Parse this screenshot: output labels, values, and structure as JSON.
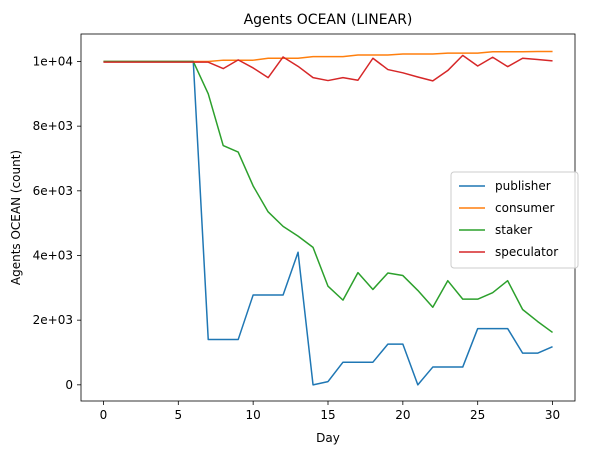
{
  "chart_data": {
    "type": "line",
    "title": "Agents OCEAN (LINEAR)",
    "xlabel": "Day",
    "ylabel": "Agents OCEAN (count)",
    "xlim": [
      -1.5,
      31.5
    ],
    "ylim": [
      -500,
      10850
    ],
    "x_ticks": [
      0,
      5,
      10,
      15,
      20,
      25,
      30
    ],
    "x_tick_labels": [
      "0",
      "5",
      "10",
      "15",
      "20",
      "25",
      "30"
    ],
    "y_ticks": [
      0,
      2000,
      4000,
      6000,
      8000,
      10000
    ],
    "y_tick_labels": [
      "0",
      "2e+03",
      "4e+03",
      "6e+03",
      "8e+03",
      "1e+04"
    ],
    "grid": false,
    "legend_position": "center-right",
    "x": [
      0,
      1,
      2,
      3,
      4,
      5,
      6,
      7,
      8,
      9,
      10,
      11,
      12,
      13,
      14,
      15,
      16,
      17,
      18,
      19,
      20,
      21,
      22,
      23,
      24,
      25,
      26,
      27,
      28,
      29,
      30
    ],
    "series": [
      {
        "name": "publisher",
        "color": "#1f77b4",
        "values": [
          10000,
          10000,
          10000,
          10000,
          10000,
          10000,
          10000,
          1400,
          1400,
          1400,
          2780,
          2780,
          2780,
          4100,
          0,
          100,
          700,
          700,
          700,
          1260,
          1260,
          0,
          550,
          550,
          550,
          1740,
          1740,
          1740,
          980,
          980,
          1180
        ]
      },
      {
        "name": "consumer",
        "color": "#ff7f0e",
        "values": [
          10000,
          10000,
          10000,
          10000,
          10000,
          10000,
          10000,
          10000,
          10040,
          10040,
          10040,
          10100,
          10100,
          10100,
          10150,
          10150,
          10150,
          10200,
          10200,
          10200,
          10230,
          10230,
          10230,
          10260,
          10260,
          10260,
          10300,
          10300,
          10300,
          10310,
          10310
        ]
      },
      {
        "name": "staker",
        "color": "#2ca02c",
        "values": [
          10000,
          10000,
          10000,
          10000,
          10000,
          10000,
          10000,
          9000,
          7400,
          7200,
          6150,
          5350,
          4900,
          4600,
          4250,
          3050,
          2620,
          3470,
          2950,
          3460,
          3380,
          2920,
          2400,
          3220,
          2650,
          2650,
          2850,
          3220,
          2330,
          1960,
          1620
        ]
      },
      {
        "name": "speculator",
        "color": "#d62728",
        "values": [
          9980,
          9980,
          9980,
          9980,
          9980,
          9980,
          9980,
          9980,
          9780,
          10050,
          9800,
          9500,
          10140,
          9850,
          9500,
          9410,
          9500,
          9420,
          10100,
          9750,
          9650,
          9520,
          9400,
          9720,
          10190,
          9860,
          10130,
          9840,
          10100,
          10060,
          10020
        ]
      }
    ]
  }
}
